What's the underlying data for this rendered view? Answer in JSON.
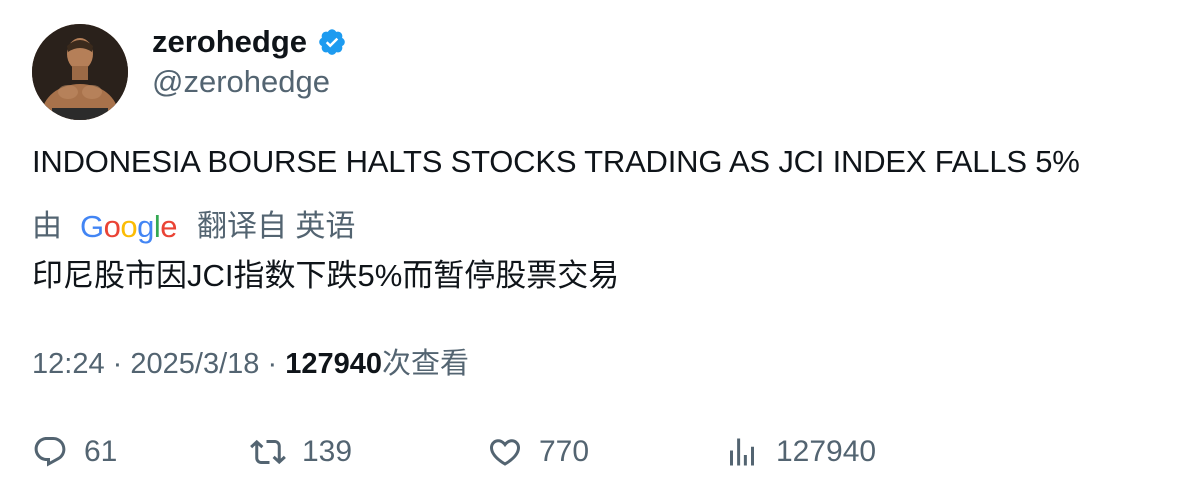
{
  "author": {
    "name": "zerohedge",
    "handle": "@zerohedge",
    "verified": true,
    "avatar_icon": "avatar-photo"
  },
  "tweet": {
    "text": "INDONESIA BOURSE HALTS STOCKS TRADING AS JCI INDEX FALLS 5%"
  },
  "translation": {
    "prefix": "由",
    "provider": "Google",
    "suffix": "翻译自 英语",
    "text": "印尼股市因JCI指数下跌5%而暂停股票交易"
  },
  "meta": {
    "time": "12:24",
    "separator": "·",
    "date": "2025/3/18",
    "views": "127940",
    "views_label": "次查看"
  },
  "actions": {
    "replies": "61",
    "reposts": "139",
    "likes": "770",
    "views": "127940"
  },
  "colors": {
    "text": "#0f1419",
    "muted": "#536471",
    "verified": "#1d9bf0"
  }
}
